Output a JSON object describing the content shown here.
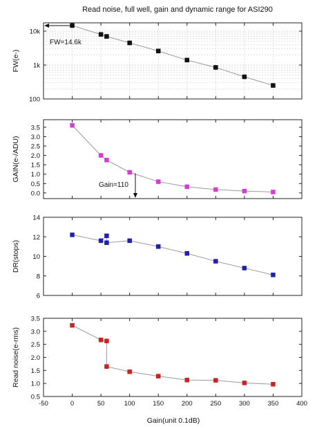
{
  "title": "Read noise, full well, gain and dynamic range for ASI290",
  "xlabel": "Gain(unit 0.1dB)",
  "annotations": {
    "fw": "FW=14.6k",
    "gain": "Gain=110"
  },
  "colors": {
    "fw": "#111111",
    "gain": "#d63bd6",
    "dr": "#1f1fb0",
    "rn": "#cc2222",
    "line": "#9a9a9a",
    "grid": "#c8c8c8"
  },
  "chart_data": [
    {
      "type": "line",
      "ylabel": "FW(e-)",
      "yscale": "log",
      "xlim": [
        -50,
        400
      ],
      "ylim": [
        100,
        20000
      ],
      "xticks": [
        -50,
        0,
        50,
        100,
        150,
        200,
        250,
        300,
        350,
        400
      ],
      "yticks": [
        100,
        1000,
        10000
      ],
      "ytick_labels": [
        "100",
        "1k",
        "10k"
      ],
      "grid": true,
      "x": [
        0,
        50,
        60,
        100,
        150,
        200,
        250,
        300,
        350
      ],
      "values": [
        14600,
        8000,
        7000,
        4500,
        2600,
        1400,
        850,
        450,
        250
      ]
    },
    {
      "type": "line",
      "ylabel": "GAIN(e-/ADU)",
      "xlim": [
        -50,
        400
      ],
      "ylim": [
        -0.3,
        3.9
      ],
      "xticks": [
        -50,
        0,
        50,
        100,
        150,
        200,
        250,
        300,
        350,
        400
      ],
      "yticks": [
        0.0,
        0.5,
        1.0,
        1.5,
        2.0,
        2.5,
        3.0,
        3.5
      ],
      "ytick_labels": [
        "0.0",
        "0.5",
        "1.0",
        "1.5",
        "2.0",
        "2.5",
        "3.0",
        "3.5"
      ],
      "x": [
        0,
        50,
        60,
        100,
        150,
        200,
        250,
        300,
        350
      ],
      "values": [
        3.6,
        2.0,
        1.75,
        1.1,
        0.6,
        0.33,
        0.18,
        0.1,
        0.05
      ]
    },
    {
      "type": "line",
      "ylabel": "DR(stops)",
      "xlim": [
        -50,
        400
      ],
      "ylim": [
        6,
        14
      ],
      "xticks": [
        -50,
        0,
        50,
        100,
        150,
        200,
        250,
        300,
        350,
        400
      ],
      "yticks": [
        6,
        8,
        10,
        12,
        14
      ],
      "ytick_labels": [
        "6",
        "8",
        "10",
        "12",
        "14"
      ],
      "x": [
        0,
        50,
        60,
        60,
        100,
        150,
        200,
        250,
        300,
        350
      ],
      "values": [
        12.2,
        11.6,
        12.1,
        11.4,
        11.6,
        11.0,
        10.3,
        9.5,
        8.8,
        8.1
      ]
    },
    {
      "type": "line",
      "ylabel": "Read noise(e-rms)",
      "xlabel": "Gain(unit 0.1dB)",
      "xlim": [
        -50,
        400
      ],
      "ylim": [
        0.5,
        3.5
      ],
      "xticks": [
        -50,
        0,
        50,
        100,
        150,
        200,
        250,
        300,
        350,
        400
      ],
      "xtick_labels": [
        "-50",
        "0",
        "50",
        "100",
        "150",
        "200",
        "250",
        "300",
        "350",
        "400"
      ],
      "yticks": [
        0.5,
        1.0,
        1.5,
        2.0,
        2.5,
        3.0,
        3.5
      ],
      "ytick_labels": [
        "0.5",
        "1.0",
        "1.5",
        "2.0",
        "2.5",
        "3.0",
        "3.5"
      ],
      "x": [
        0,
        50,
        60,
        60,
        100,
        150,
        200,
        250,
        300,
        350
      ],
      "values": [
        3.23,
        2.67,
        2.63,
        1.65,
        1.45,
        1.28,
        1.13,
        1.12,
        1.02,
        0.97
      ]
    }
  ]
}
